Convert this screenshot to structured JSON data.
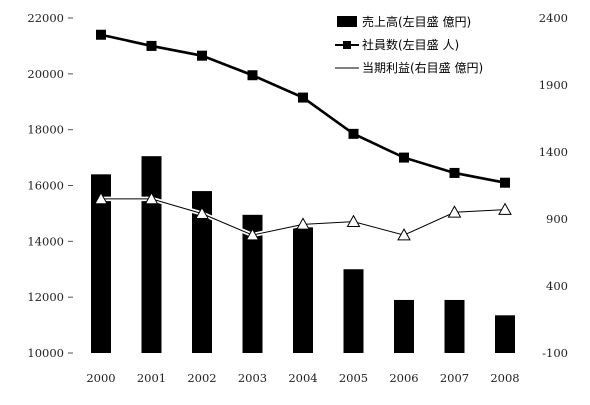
{
  "chart_data": {
    "type": "bar",
    "title": "",
    "categories": [
      "2000",
      "2001",
      "2002",
      "2003",
      "2004",
      "2005",
      "2006",
      "2007",
      "2008"
    ],
    "left_axis": {
      "min": 10000,
      "max": 22000,
      "ticks": [
        "10000",
        "12000",
        "14000",
        "16000",
        "18000",
        "20000",
        "22000"
      ]
    },
    "right_axis": {
      "min": -100,
      "max": 2400,
      "ticks": [
        "-100",
        "400",
        "900",
        "1400",
        "1900",
        "2400"
      ]
    },
    "grid": false,
    "legend_position": "top-right",
    "series": [
      {
        "name": "売上高(左目盛 億円)",
        "type": "bar",
        "axis": "left",
        "color": "#000000",
        "values": [
          16400,
          17050,
          15800,
          14950,
          14500,
          13000,
          11900,
          11900,
          11350
        ]
      },
      {
        "name": "社員数(左目盛 人)",
        "type": "line",
        "marker": "square",
        "axis": "left",
        "color": "#000000",
        "values": [
          21400,
          21000,
          20650,
          19950,
          19150,
          17850,
          17000,
          16450,
          16100
        ]
      },
      {
        "name": "当期利益(右目盛 億円)",
        "type": "line",
        "marker": "triangle",
        "axis": "right",
        "color": "#000000",
        "values": [
          1050,
          1050,
          940,
          780,
          860,
          880,
          780,
          950,
          970
        ]
      }
    ]
  }
}
